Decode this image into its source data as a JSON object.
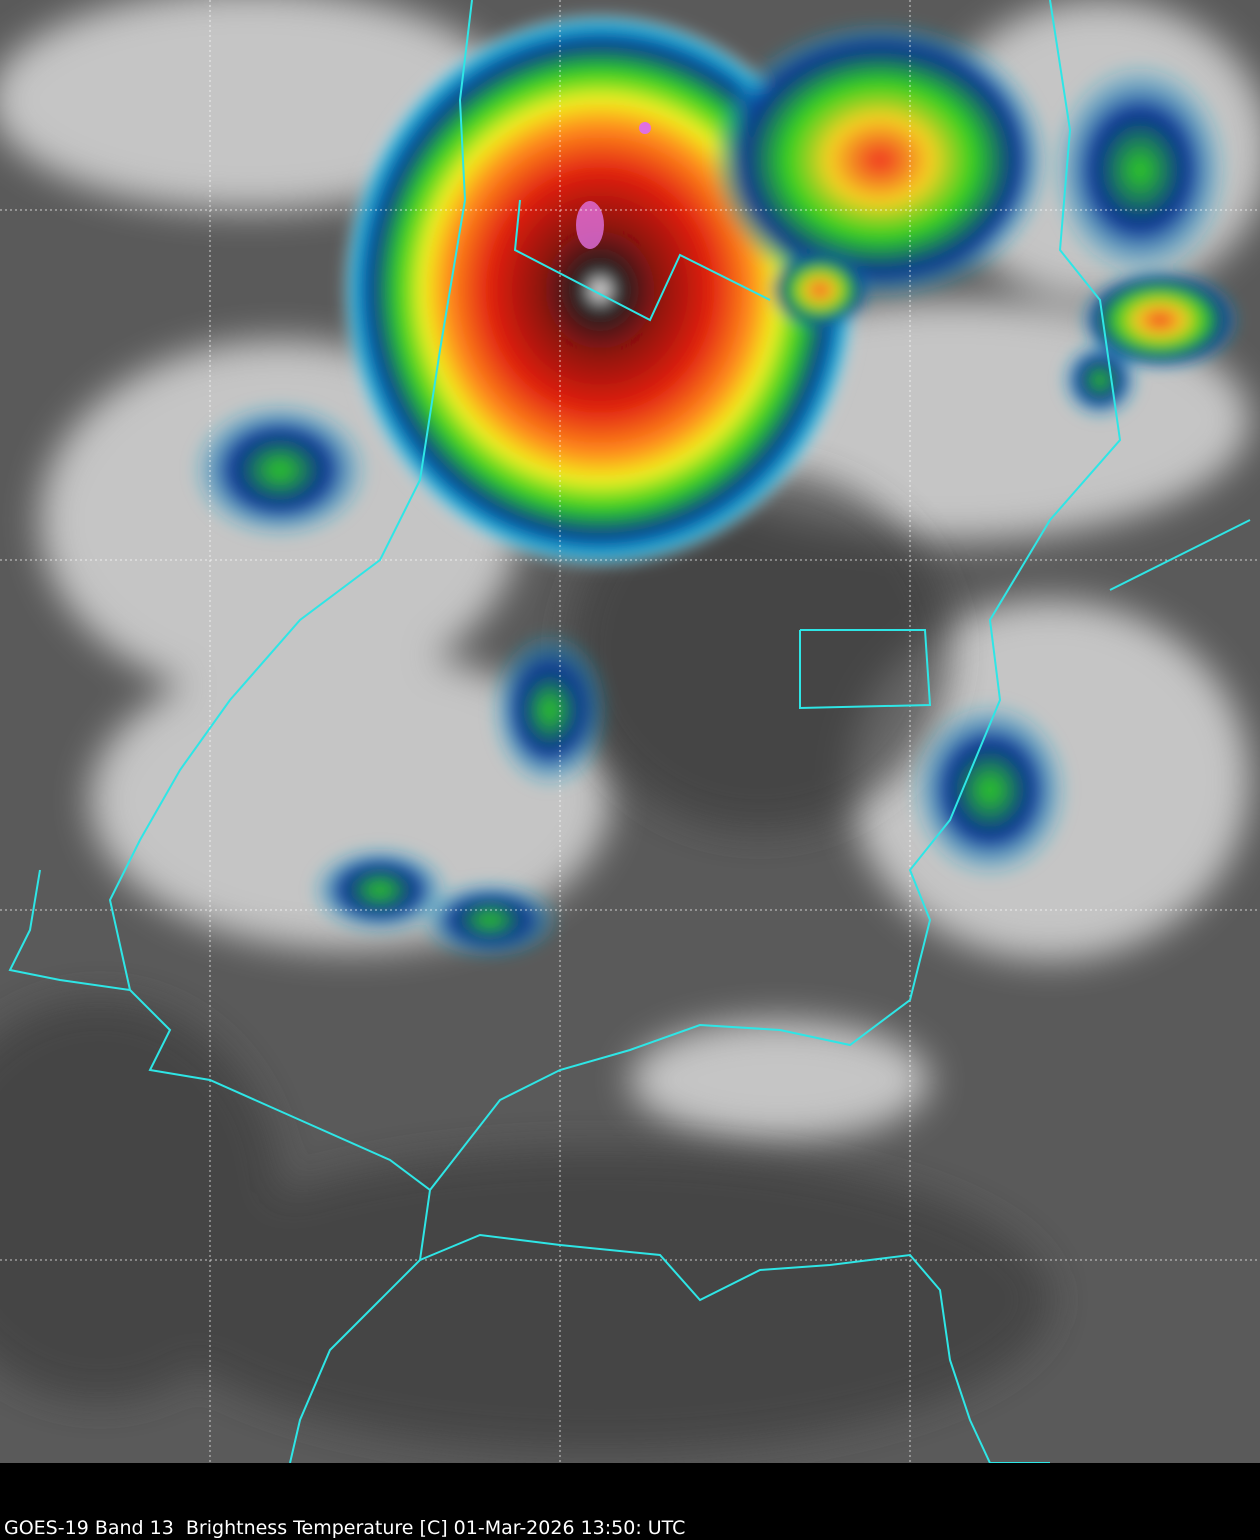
{
  "caption": "GOES-19 Band 13  Brightness Temperature [C] 01-Mar-2026 13:50: UTC"
}
